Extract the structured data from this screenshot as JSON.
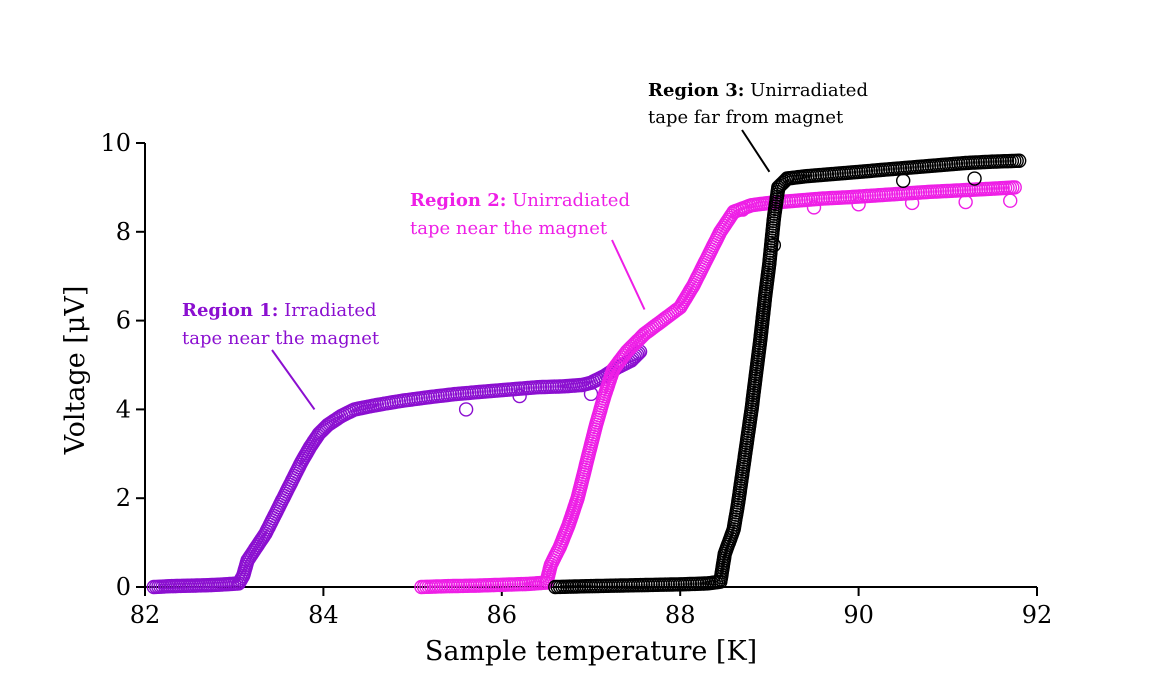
{
  "chart_data": {
    "type": "scatter",
    "xlabel": "Sample temperature [K]",
    "ylabel": "Voltage [μV]",
    "xlim": [
      82,
      92
    ],
    "ylim": [
      0,
      10
    ],
    "x_ticks": [
      "82",
      "84",
      "86",
      "88",
      "90",
      "92"
    ],
    "y_ticks": [
      "0",
      "2",
      "4",
      "6",
      "8",
      "10"
    ],
    "grid": false,
    "marker": "open circle",
    "series": [
      {
        "color": "#8B0FD0",
        "points": [
          [
            82.1,
            0.0
          ],
          [
            82.3,
            0.02
          ],
          [
            82.5,
            0.03
          ],
          [
            82.7,
            0.04
          ],
          [
            82.9,
            0.06
          ],
          [
            83.05,
            0.08
          ],
          [
            83.1,
            0.25
          ],
          [
            83.15,
            0.6
          ],
          [
            83.25,
            0.9
          ],
          [
            83.35,
            1.2
          ],
          [
            83.45,
            1.6
          ],
          [
            83.55,
            2.0
          ],
          [
            83.65,
            2.4
          ],
          [
            83.75,
            2.8
          ],
          [
            83.85,
            3.15
          ],
          [
            83.95,
            3.45
          ],
          [
            84.05,
            3.65
          ],
          [
            84.2,
            3.85
          ],
          [
            84.35,
            4.0
          ],
          [
            84.6,
            4.1
          ],
          [
            84.9,
            4.2
          ],
          [
            85.2,
            4.28
          ],
          [
            85.5,
            4.35
          ],
          [
            85.8,
            4.4
          ],
          [
            86.1,
            4.45
          ],
          [
            86.4,
            4.5
          ],
          [
            86.7,
            4.52
          ],
          [
            86.9,
            4.55
          ],
          [
            87.0,
            4.6
          ],
          [
            87.15,
            4.75
          ],
          [
            87.3,
            4.95
          ],
          [
            87.45,
            5.1
          ],
          [
            87.55,
            5.3
          ]
        ],
        "scatter_points": [
          [
            85.6,
            4.0
          ],
          [
            86.2,
            4.3
          ],
          [
            87.0,
            4.35
          ]
        ]
      },
      {
        "color": "#EE1FE6",
        "points": [
          [
            85.1,
            0.0
          ],
          [
            85.4,
            0.02
          ],
          [
            85.7,
            0.03
          ],
          [
            86.0,
            0.05
          ],
          [
            86.3,
            0.07
          ],
          [
            86.5,
            0.1
          ],
          [
            86.55,
            0.5
          ],
          [
            86.65,
            0.9
          ],
          [
            86.75,
            1.4
          ],
          [
            86.85,
            2.0
          ],
          [
            86.95,
            2.8
          ],
          [
            87.05,
            3.6
          ],
          [
            87.15,
            4.3
          ],
          [
            87.25,
            4.9
          ],
          [
            87.4,
            5.3
          ],
          [
            87.6,
            5.7
          ],
          [
            87.8,
            6.0
          ],
          [
            88.0,
            6.3
          ],
          [
            88.15,
            6.8
          ],
          [
            88.3,
            7.4
          ],
          [
            88.45,
            8.0
          ],
          [
            88.6,
            8.45
          ],
          [
            88.8,
            8.6
          ],
          [
            89.0,
            8.65
          ],
          [
            89.3,
            8.7
          ],
          [
            89.6,
            8.75
          ],
          [
            89.9,
            8.78
          ],
          [
            90.2,
            8.82
          ],
          [
            90.5,
            8.86
          ],
          [
            90.8,
            8.9
          ],
          [
            91.1,
            8.93
          ],
          [
            91.4,
            8.96
          ],
          [
            91.75,
            9.0
          ]
        ],
        "scatter_points": [
          [
            88.7,
            8.5
          ],
          [
            89.5,
            8.55
          ],
          [
            90.0,
            8.62
          ],
          [
            90.6,
            8.65
          ],
          [
            91.2,
            8.67
          ],
          [
            91.7,
            8.7
          ]
        ]
      },
      {
        "color": "#000000",
        "points": [
          [
            86.6,
            0.0
          ],
          [
            87.0,
            0.02
          ],
          [
            87.5,
            0.04
          ],
          [
            88.0,
            0.06
          ],
          [
            88.3,
            0.08
          ],
          [
            88.45,
            0.12
          ],
          [
            88.5,
            0.75
          ],
          [
            88.6,
            1.3
          ],
          [
            88.65,
            1.9
          ],
          [
            88.7,
            2.6
          ],
          [
            88.75,
            3.3
          ],
          [
            88.8,
            4.0
          ],
          [
            88.85,
            4.8
          ],
          [
            88.9,
            5.6
          ],
          [
            88.95,
            6.5
          ],
          [
            89.0,
            7.3
          ],
          [
            89.05,
            8.3
          ],
          [
            89.1,
            9.0
          ],
          [
            89.2,
            9.2
          ],
          [
            89.4,
            9.25
          ],
          [
            89.7,
            9.3
          ],
          [
            90.0,
            9.35
          ],
          [
            90.3,
            9.4
          ],
          [
            90.6,
            9.45
          ],
          [
            90.9,
            9.5
          ],
          [
            91.2,
            9.55
          ],
          [
            91.5,
            9.58
          ],
          [
            91.8,
            9.6
          ]
        ],
        "scatter_points": [
          [
            89.05,
            7.7
          ],
          [
            90.5,
            9.15
          ],
          [
            91.3,
            9.2
          ]
        ]
      }
    ],
    "annotations": [
      {
        "bold": "Region 1:",
        "text1": " Irradiated",
        "text2": "tape near the magnet",
        "color": "#8B0FD0",
        "arrow_to": [
          83.9,
          4.0
        ]
      },
      {
        "bold": "Region 2:",
        "text1": " Unirradiated",
        "text2": "tape near the magnet",
        "color": "#EE1FE6",
        "arrow_to": [
          87.6,
          6.25
        ]
      },
      {
        "bold": "Region 3:",
        "text1": " Unirradiated",
        "text2": "tape far from magnet",
        "color": "#000000",
        "arrow_to": [
          89.0,
          9.35
        ]
      }
    ]
  }
}
